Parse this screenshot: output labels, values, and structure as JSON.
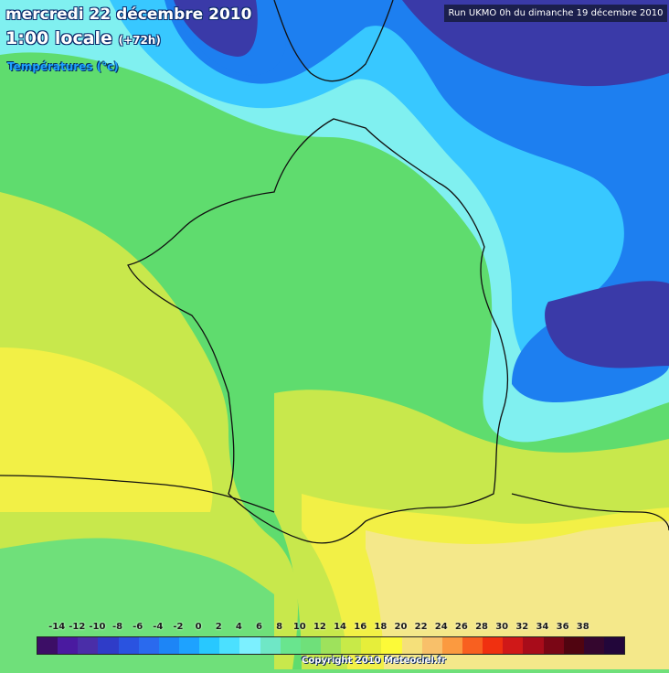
{
  "header": {
    "date_line": "mercredi 22 décembre 2010",
    "time_line": "1:00 locale",
    "lead_time": "(+72h)",
    "variable": "Températures (°c)"
  },
  "run_info": "Run UKMO 0h du dimanche 19 décembre 2010",
  "legend": {
    "ticks": [
      "-14",
      "-12",
      "-10",
      "-8",
      "-6",
      "-4",
      "-2",
      "0",
      "2",
      "4",
      "6",
      "8",
      "10",
      "12",
      "14",
      "16",
      "18",
      "20",
      "22",
      "24",
      "26",
      "28",
      "30",
      "32",
      "34",
      "36",
      "38"
    ],
    "colors": [
      "#3c0e66",
      "#4a1aa0",
      "#4a2ea8",
      "#2f3cc8",
      "#2a53e0",
      "#2a6aee",
      "#1d85f6",
      "#1ea2ff",
      "#28c8ff",
      "#4be0ff",
      "#7cf0ff",
      "#6fe7c6",
      "#69e58e",
      "#6fe07a",
      "#9ee25c",
      "#c8ea48",
      "#e6ee3a",
      "#fcfa38",
      "#f5e07a",
      "#f8c06a",
      "#fb9a40",
      "#f86020",
      "#f03010",
      "#d01818",
      "#a80c1a",
      "#7a0615",
      "#500410",
      "#34062e",
      "#22063a"
    ]
  },
  "copyright": "Copyright 2010 Meteociel.fr",
  "map_colors": {
    "deep_cold": "#3a3aa8",
    "cold": "#1d7ff0",
    "cool": "#38c8ff",
    "light": "#80f0f0",
    "mild": "#5fdc6e",
    "warm": "#c8e84c",
    "warmer": "#f2f046",
    "warmest": "#f4e88a"
  }
}
